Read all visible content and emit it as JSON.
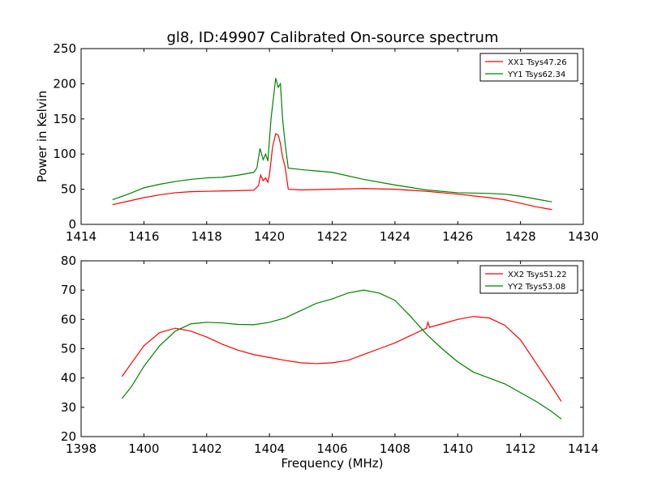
{
  "chart_data": [
    {
      "type": "line",
      "title": "gl8, ID:49907 Calibrated On-source spectrum",
      "xlabel": "",
      "ylabel": "Power in Kelvin",
      "xlim": [
        1414,
        1430
      ],
      "ylim": [
        0,
        250
      ],
      "xticks": [
        1414,
        1416,
        1418,
        1420,
        1422,
        1424,
        1426,
        1428,
        1430
      ],
      "yticks": [
        0,
        50,
        100,
        150,
        200,
        250
      ],
      "grid": false,
      "legend_position": "top-right",
      "series": [
        {
          "name": "XX1 Tsys47.26",
          "color": "#ff0000",
          "points": [
            [
              1415.0,
              28
            ],
            [
              1415.5,
              33
            ],
            [
              1416.0,
              38
            ],
            [
              1416.5,
              42
            ],
            [
              1417.0,
              45
            ],
            [
              1417.5,
              46.5
            ],
            [
              1418.0,
              47
            ],
            [
              1418.5,
              47.5
            ],
            [
              1419.0,
              48
            ],
            [
              1419.5,
              48.5
            ],
            [
              1419.65,
              55
            ],
            [
              1419.72,
              70
            ],
            [
              1419.8,
              62
            ],
            [
              1419.88,
              66
            ],
            [
              1419.95,
              60
            ],
            [
              1420.0,
              70
            ],
            [
              1420.1,
              110
            ],
            [
              1420.2,
              129
            ],
            [
              1420.28,
              127
            ],
            [
              1420.35,
              115
            ],
            [
              1420.42,
              95
            ],
            [
              1420.5,
              82
            ],
            [
              1420.6,
              50
            ],
            [
              1421.0,
              49
            ],
            [
              1422.0,
              50
            ],
            [
              1423.0,
              51
            ],
            [
              1424.0,
              50
            ],
            [
              1425.0,
              47
            ],
            [
              1426.0,
              43
            ],
            [
              1427.0,
              38
            ],
            [
              1427.5,
              35
            ],
            [
              1428.0,
              30
            ],
            [
              1428.5,
              25
            ],
            [
              1429.0,
              21
            ]
          ]
        },
        {
          "name": "YY1 Tsys62.34",
          "color": "#008000",
          "points": [
            [
              1415.0,
              35
            ],
            [
              1415.5,
              43
            ],
            [
              1416.0,
              52
            ],
            [
              1416.5,
              57
            ],
            [
              1417.0,
              61
            ],
            [
              1417.5,
              64
            ],
            [
              1418.0,
              66
            ],
            [
              1418.5,
              67
            ],
            [
              1419.0,
              70
            ],
            [
              1419.5,
              74
            ],
            [
              1419.6,
              80
            ],
            [
              1419.7,
              108
            ],
            [
              1419.8,
              92
            ],
            [
              1419.88,
              100
            ],
            [
              1419.95,
              90
            ],
            [
              1420.05,
              150
            ],
            [
              1420.2,
              208
            ],
            [
              1420.28,
              195
            ],
            [
              1420.35,
              200
            ],
            [
              1420.42,
              150
            ],
            [
              1420.5,
              115
            ],
            [
              1420.6,
              80
            ],
            [
              1421.0,
              78
            ],
            [
              1422.0,
              74
            ],
            [
              1423.0,
              64
            ],
            [
              1424.0,
              56
            ],
            [
              1425.0,
              49
            ],
            [
              1426.0,
              45
            ],
            [
              1427.0,
              44
            ],
            [
              1427.5,
              43
            ],
            [
              1428.0,
              40
            ],
            [
              1428.5,
              36
            ],
            [
              1429.0,
              32
            ]
          ]
        }
      ]
    },
    {
      "type": "line",
      "title": "",
      "xlabel": "Frequency (MHz)",
      "ylabel": "",
      "xlim": [
        1398,
        1414
      ],
      "ylim": [
        20,
        80
      ],
      "xticks": [
        1398,
        1400,
        1402,
        1404,
        1406,
        1408,
        1410,
        1412,
        1414
      ],
      "yticks": [
        20,
        30,
        40,
        50,
        60,
        70,
        80
      ],
      "grid": false,
      "legend_position": "top-right",
      "series": [
        {
          "name": "XX2 Tsys51.22",
          "color": "#ff0000",
          "points": [
            [
              1399.3,
              40.5
            ],
            [
              1399.6,
              45
            ],
            [
              1400.0,
              51
            ],
            [
              1400.5,
              55.5
            ],
            [
              1401.0,
              57
            ],
            [
              1401.5,
              56
            ],
            [
              1402.0,
              54
            ],
            [
              1402.5,
              51.5
            ],
            [
              1403.0,
              49.5
            ],
            [
              1403.5,
              48
            ],
            [
              1404.0,
              47
            ],
            [
              1404.5,
              46
            ],
            [
              1405.0,
              45.2
            ],
            [
              1405.5,
              44.9
            ],
            [
              1406.0,
              45.2
            ],
            [
              1406.5,
              46
            ],
            [
              1407.0,
              48
            ],
            [
              1407.5,
              50
            ],
            [
              1408.0,
              52
            ],
            [
              1408.5,
              54.5
            ],
            [
              1409.0,
              57
            ],
            [
              1409.05,
              59
            ],
            [
              1409.1,
              57.3
            ],
            [
              1409.5,
              58.5
            ],
            [
              1410.0,
              60
            ],
            [
              1410.5,
              61
            ],
            [
              1411.0,
              60.5
            ],
            [
              1411.5,
              58
            ],
            [
              1412.0,
              53
            ],
            [
              1412.5,
              45
            ],
            [
              1413.0,
              37
            ],
            [
              1413.3,
              32
            ]
          ]
        },
        {
          "name": "YY2 Tsys53.08",
          "color": "#008000",
          "points": [
            [
              1399.3,
              33
            ],
            [
              1399.6,
              37
            ],
            [
              1400.0,
              44
            ],
            [
              1400.5,
              51
            ],
            [
              1401.0,
              56
            ],
            [
              1401.5,
              58.5
            ],
            [
              1402.0,
              59
            ],
            [
              1402.5,
              58.8
            ],
            [
              1403.0,
              58.3
            ],
            [
              1403.5,
              58.2
            ],
            [
              1404.0,
              59
            ],
            [
              1404.5,
              60.5
            ],
            [
              1405.0,
              63
            ],
            [
              1405.5,
              65.5
            ],
            [
              1406.0,
              67
            ],
            [
              1406.5,
              69
            ],
            [
              1407.0,
              70
            ],
            [
              1407.5,
              69
            ],
            [
              1408.0,
              66.5
            ],
            [
              1408.5,
              61
            ],
            [
              1409.0,
              55
            ],
            [
              1409.5,
              50
            ],
            [
              1410.0,
              45.5
            ],
            [
              1410.5,
              42
            ],
            [
              1411.0,
              40
            ],
            [
              1411.5,
              38
            ],
            [
              1412.0,
              35
            ],
            [
              1412.5,
              32
            ],
            [
              1413.0,
              28.5
            ],
            [
              1413.3,
              26
            ]
          ]
        }
      ]
    }
  ]
}
